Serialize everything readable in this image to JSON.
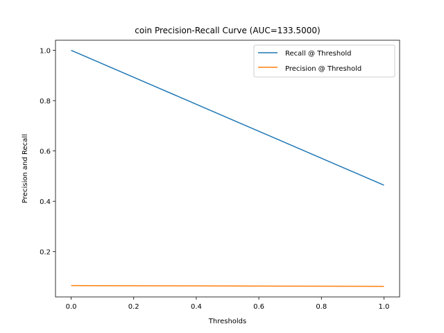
{
  "chart_data": {
    "type": "line",
    "title": "coin Precision-Recall Curve (AUC=133.5000)",
    "xlabel": "Thresholds",
    "ylabel": "Precision and Recall",
    "xlim": [
      -0.05,
      1.05
    ],
    "ylim": [
      0.02,
      1.04
    ],
    "xticks": [
      0.0,
      0.2,
      0.4,
      0.6,
      0.8,
      1.0
    ],
    "xtick_labels": [
      "0.0",
      "0.2",
      "0.4",
      "0.6",
      "0.8",
      "1.0"
    ],
    "yticks": [
      0.2,
      0.4,
      0.6,
      0.8,
      1.0
    ],
    "ytick_labels": [
      "0.2",
      "0.4",
      "0.6",
      "0.8",
      "1.0"
    ],
    "grid": false,
    "legend_position": "top-right",
    "series": [
      {
        "name": "Recall @ Threshold",
        "color": "#1f77b4",
        "x": [
          0.0,
          1.0
        ],
        "y": [
          1.0,
          0.464
        ]
      },
      {
        "name": "Precision @ Threshold",
        "color": "#ff7f0e",
        "x": [
          0.0,
          1.0
        ],
        "y": [
          0.065,
          0.062
        ]
      }
    ]
  }
}
